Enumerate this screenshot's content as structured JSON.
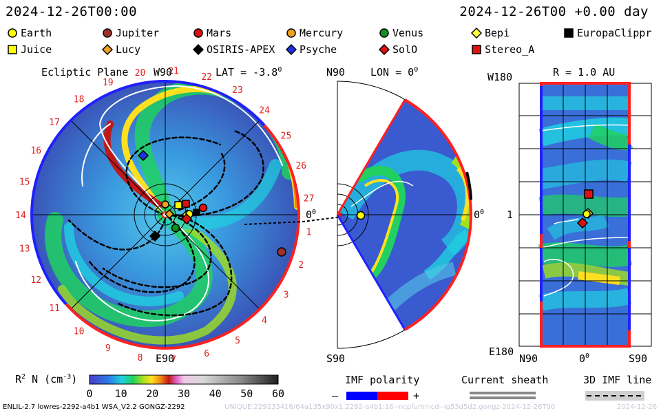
{
  "header": {
    "time_left": "2024-12-26T00:00",
    "time_right": "2024-12-26T00 +0.00 day"
  },
  "legend": {
    "items": [
      {
        "label": "Earth",
        "shape": "circle",
        "color": "#ffff00"
      },
      {
        "label": "Jupiter",
        "shape": "circle",
        "color": "#a0302a"
      },
      {
        "label": "Mars",
        "shape": "circle",
        "color": "#e01010"
      },
      {
        "label": "Mercury",
        "shape": "circle",
        "color": "#f0a020"
      },
      {
        "label": "Venus",
        "shape": "circle",
        "color": "#109020"
      },
      {
        "label": "Bepi",
        "shape": "diamond",
        "color": "#ffff40"
      },
      {
        "label": "EuropaClippr",
        "shape": "square",
        "color": "#000000"
      },
      {
        "label": "Juice",
        "shape": "square",
        "color": "#ffff00"
      },
      {
        "label": "Lucy",
        "shape": "diamond",
        "color": "#f0a020"
      },
      {
        "label": "OSIRIS-APEX",
        "shape": "diamond",
        "color": "#000000"
      },
      {
        "label": "Psyche",
        "shape": "diamond",
        "color": "#2030e0"
      },
      {
        "label": "SolO",
        "shape": "diamond",
        "color": "#e01010"
      },
      {
        "label": "Stereo_A",
        "shape": "square",
        "color": "#e01010"
      }
    ]
  },
  "ecliptic": {
    "title": "Ecliptic Plane",
    "top_label": "W90",
    "lat_label": "LAT = -3.8",
    "lat_sup": "0",
    "bottom_label": "E90",
    "zero_label": "0",
    "zero_sup": "0",
    "rim_numbers": [
      "20",
      "21",
      "22",
      "23",
      "24",
      "25",
      "26",
      "27",
      "1",
      "2",
      "3",
      "4",
      "5",
      "6",
      "7",
      "8",
      "9",
      "10",
      "11",
      "12",
      "13",
      "14",
      "15",
      "16",
      "17",
      "18",
      "19"
    ]
  },
  "meridional": {
    "top_label": "N90",
    "lon_label": "LON = 0",
    "lon_sup": "0",
    "bottom_label": "S90",
    "zero_label": "0",
    "zero_sup": "0"
  },
  "map": {
    "r_label": "R = 1.0 AU",
    "top_label": "W180",
    "bottom_label": "E180",
    "left_axis_label": "1",
    "x_labels": [
      "N90",
      "0",
      "S90"
    ],
    "x_mid_sup": "0"
  },
  "colorbar": {
    "label": "R",
    "label_sup": "2",
    "label_rest": " N (cm",
    "label_unit_sup": "-3",
    "label_close": ")",
    "ticks": [
      "0",
      "10",
      "20",
      "30",
      "40",
      "50",
      "60"
    ],
    "range": [
      0,
      60
    ]
  },
  "imf": {
    "title": "IMF polarity",
    "minus": "–",
    "plus": "+",
    "neg_color": "#0000ff",
    "pos_color": "#ff0000"
  },
  "sheath": {
    "title": "Current sheath"
  },
  "imf3d": {
    "title": "3D IMF line"
  },
  "footer": {
    "left": "ENLIL-2.7 lowres-2292-a4b1 WSA_V2.2 GONGZ-2292",
    "watermark": "UNIQUE:229233416/64a135x90x1.2292-a4b1:16--ncpfumnicd--ig53d5d2.gongz-2024-12-26T00",
    "right": "2024-12-26"
  }
}
